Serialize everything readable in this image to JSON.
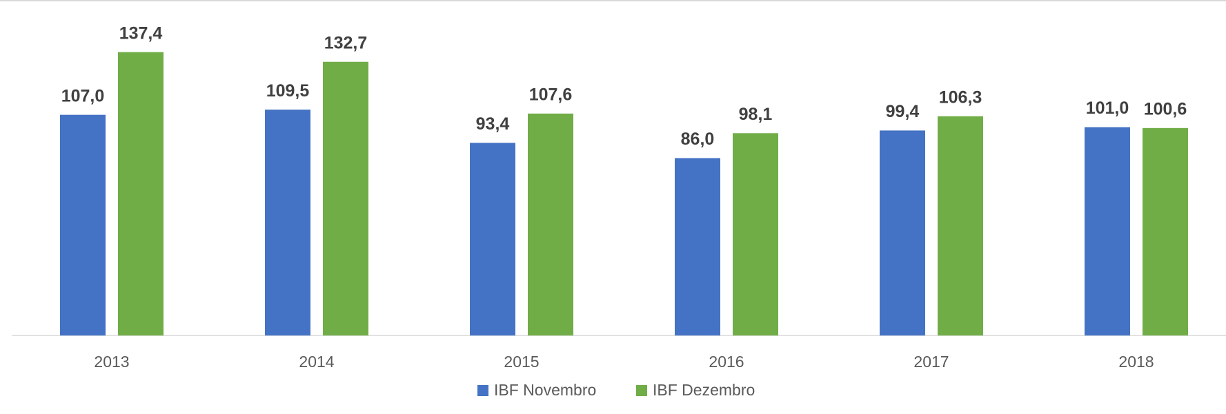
{
  "chart_data": {
    "type": "bar",
    "categories": [
      "2013",
      "2014",
      "2015",
      "2016",
      "2017",
      "2018"
    ],
    "series": [
      {
        "name": "IBF Novembro",
        "color": "#4472c4",
        "values": [
          107.0,
          109.5,
          93.4,
          86.0,
          99.4,
          101.0
        ],
        "value_labels": [
          "107,0",
          "109,5",
          "93,4",
          "86,0",
          "99,4",
          "101,0"
        ]
      },
      {
        "name": "IBF Dezembro",
        "color": "#70ad47",
        "values": [
          137.4,
          132.7,
          107.6,
          98.1,
          106.3,
          100.6
        ],
        "value_labels": [
          "137,4",
          "132,7",
          "107,6",
          "98,1",
          "106,3",
          "100,6"
        ]
      }
    ],
    "ylim": [
      0,
      160
    ],
    "legend": "bottom"
  }
}
